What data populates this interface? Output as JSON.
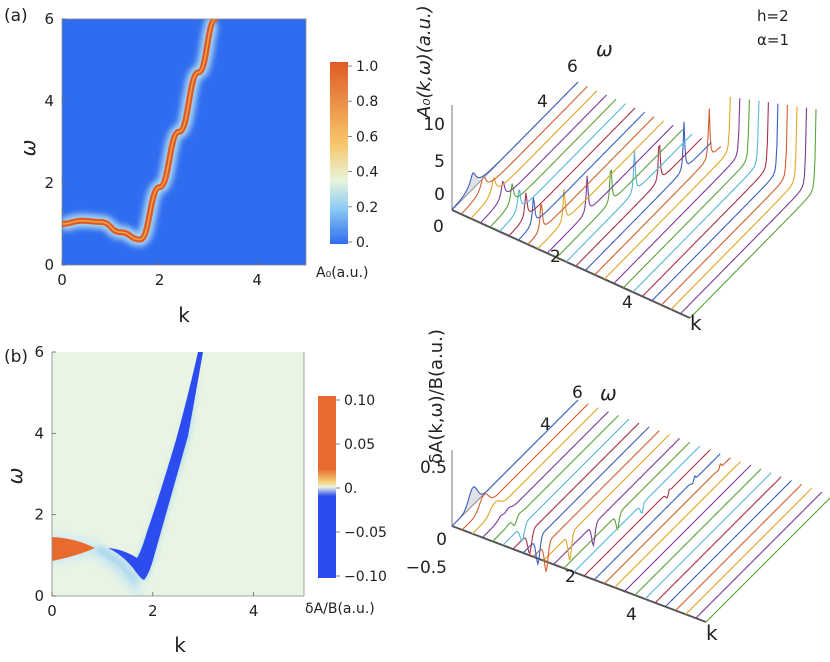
{
  "panel_labels": {
    "a": "(a)",
    "b": "(b)"
  },
  "params": {
    "h": "h=2",
    "alpha": "α=1"
  },
  "chart_data": [
    {
      "type": "heatmap",
      "panel": "(a)",
      "xlabel": "k",
      "ylabel": "ω",
      "xlim": [
        0,
        5
      ],
      "ylim": [
        0,
        6
      ],
      "xticks": [
        "0",
        "2",
        "4"
      ],
      "yticks": [
        "0",
        "2",
        "4",
        "6"
      ],
      "colorbar": {
        "label": "A₀(a.u.)",
        "range": [
          0,
          1
        ],
        "ticks": [
          "1.0",
          "0.8",
          "0.6",
          "0.4",
          "0.2",
          "0."
        ],
        "colors": [
          "#2f6df0",
          "#e5f2e0",
          "#f7c76a",
          "#e86a2c"
        ]
      },
      "dispersion": {
        "k": [
          0,
          0.4,
          0.8,
          1.2,
          1.6,
          2.0,
          2.4,
          2.8,
          3.15
        ],
        "omega": [
          1.0,
          1.08,
          1.05,
          0.8,
          0.62,
          1.9,
          3.25,
          4.7,
          6.0
        ]
      }
    },
    {
      "type": "line",
      "panel": "(a) 3D",
      "zlabel": "A₀(k,ω)(a.u.)",
      "xlabel": "k",
      "ylabel": "ω",
      "zticks": [
        "0",
        "5",
        "10"
      ],
      "kticks": [
        "0",
        "2",
        "4"
      ],
      "wticks": [
        "2",
        "4",
        "6"
      ]
    },
    {
      "type": "heatmap",
      "panel": "(b)",
      "xlabel": "k",
      "ylabel": "ω",
      "xlim": [
        0,
        5
      ],
      "ylim": [
        0,
        6
      ],
      "xticks": [
        "0",
        "2",
        "4"
      ],
      "yticks": [
        "0",
        "2",
        "4",
        "6"
      ],
      "colorbar": {
        "label": "δA/B(a.u.)",
        "range": [
          -0.1,
          0.1
        ],
        "ticks": [
          "0.10",
          "0.05",
          "0.",
          "−0.05",
          "−0.10"
        ],
        "colors": [
          "#2f4ff0",
          "#e8f4e4",
          "#f4ce78",
          "#e86a2c"
        ]
      }
    },
    {
      "type": "line",
      "panel": "(b) 3D",
      "zlabel": "δA(k,ω)/B(a.u.)",
      "xlabel": "k",
      "ylabel": "ω",
      "zticks": [
        "0.5",
        "0",
        "−0.5"
      ],
      "kticks": [
        "2",
        "4"
      ],
      "wticks": [
        "4",
        "6"
      ]
    }
  ]
}
